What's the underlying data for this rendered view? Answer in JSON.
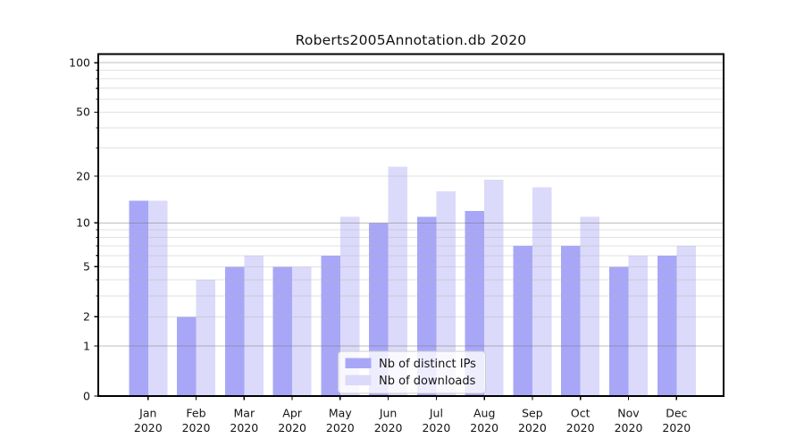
{
  "chart_data": {
    "type": "bar",
    "title": "Roberts2005Annotation.db 2020",
    "categories": [
      "Jan",
      "Feb",
      "Mar",
      "Apr",
      "May",
      "Jun",
      "Jul",
      "Aug",
      "Sep",
      "Oct",
      "Nov",
      "Dec"
    ],
    "year_label": "2020",
    "series": [
      {
        "name": "Nb of distinct IPs",
        "color": "#a8a7f7",
        "values": [
          14,
          2,
          5,
          5,
          6,
          10,
          11,
          12,
          7,
          7,
          5,
          6
        ]
      },
      {
        "name": "Nb of downloads",
        "color": "#dbdafa",
        "values": [
          14,
          4,
          6,
          5,
          11,
          23,
          16,
          19,
          17,
          11,
          6,
          7
        ]
      }
    ],
    "xlabel": "",
    "ylabel": "",
    "yscale": "log(value+1)",
    "yticks": [
      0,
      1,
      2,
      5,
      10,
      20,
      50,
      100
    ],
    "ylim": [
      0,
      112
    ],
    "grid": "horizontal",
    "grid_major_values": [
      1,
      10,
      100
    ],
    "grid_minor_values": [
      2,
      3,
      4,
      5,
      6,
      7,
      8,
      9,
      20,
      30,
      40,
      50,
      60,
      70,
      80,
      90
    ],
    "legend_position": "lower-center inside plot",
    "colors": {
      "spine": "#000000",
      "grid_major": "#c6c6c6",
      "grid_minor": "#e9e9e9",
      "legend_border": "#cccccc",
      "legend_background": "#ffffff"
    }
  }
}
